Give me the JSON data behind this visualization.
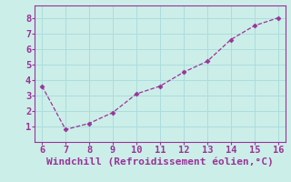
{
  "x": [
    6,
    7,
    8,
    9,
    10,
    11,
    12,
    13,
    14,
    15,
    16
  ],
  "y": [
    3.6,
    0.8,
    1.2,
    1.9,
    3.1,
    3.6,
    4.5,
    5.2,
    6.6,
    7.5,
    8.0
  ],
  "line_color": "#993399",
  "marker": "D",
  "marker_size": 2.5,
  "bg_color": "#cceee8",
  "grid_color": "#aadddd",
  "xlabel": "Windchill (Refroidissement éolien,°C)",
  "xlabel_color": "#993399",
  "tick_color": "#993399",
  "xlim": [
    5.7,
    16.3
  ],
  "ylim": [
    0.0,
    8.8
  ],
  "xticks": [
    6,
    7,
    8,
    9,
    10,
    11,
    12,
    13,
    14,
    15,
    16
  ],
  "yticks": [
    1,
    2,
    3,
    4,
    5,
    6,
    7,
    8
  ],
  "spine_color": "#993399",
  "tick_fontsize": 7.5,
  "xlabel_fontsize": 8
}
